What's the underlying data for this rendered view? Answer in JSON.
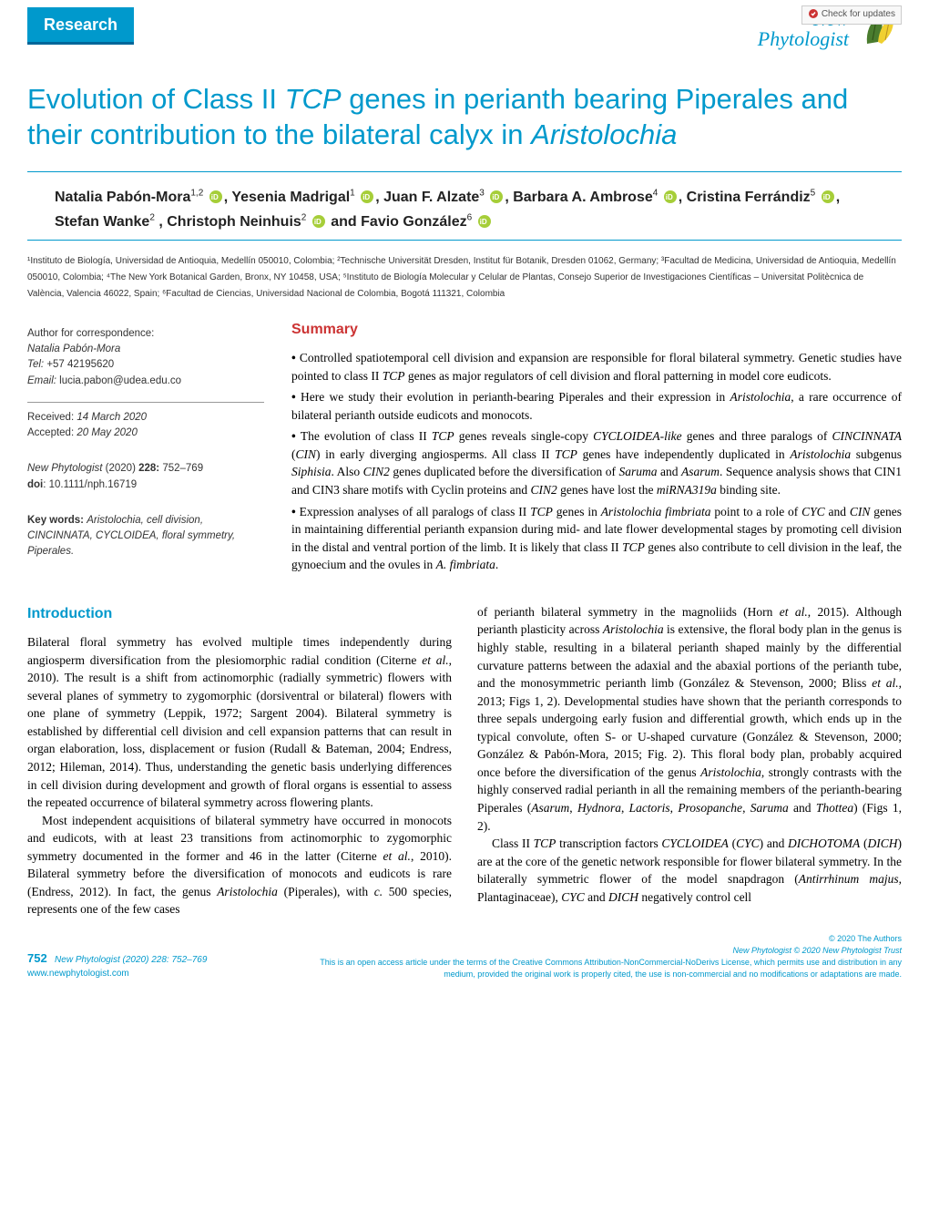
{
  "header": {
    "research_tab": "Research",
    "journal_line1": "New",
    "journal_line2": "Phytologist",
    "check_updates": "Check for updates"
  },
  "title": {
    "part1": "Evolution of Class II ",
    "italic1": "TCP",
    "part2": " genes in perianth bearing Piperales and their contribution to the bilateral calyx in ",
    "italic2": "Aristolochia"
  },
  "authors": [
    {
      "name": "Natalia Pabón-Mora",
      "sup": "1,2",
      "orcid": true,
      "sep": ", "
    },
    {
      "name": "Yesenia Madrigal",
      "sup": "1",
      "orcid": true,
      "sep": ", "
    },
    {
      "name": "Juan F. Alzate",
      "sup": "3",
      "orcid": true,
      "sep": ", "
    },
    {
      "name": "Barbara A. Ambrose",
      "sup": "4",
      "orcid": true,
      "sep": ", "
    },
    {
      "name": "Cristina Ferrándiz",
      "sup": "5",
      "orcid": true,
      "sep": ", "
    },
    {
      "name": "Stefan Wanke",
      "sup": "2",
      "orcid": false,
      "sep": ", "
    },
    {
      "name": "Christoph Neinhuis",
      "sup": "2",
      "orcid": true,
      "sep": " and "
    },
    {
      "name": "Favio González",
      "sup": "6",
      "orcid": true,
      "sep": ""
    }
  ],
  "affiliations": "¹Instituto de Biología, Universidad de Antioquia, Medellín 050010, Colombia; ²Technische Universität Dresden, Institut für Botanik, Dresden 01062, Germany; ³Facultad de Medicina, Universidad de Antioquia, Medellín 050010, Colombia; ⁴The New York Botanical Garden, Bronx, NY 10458, USA; ⁵Instituto de Biología Molecular y Celular de Plantas, Consejo Superior de Investigaciones Científicas – Universitat Politècnica de València, Valencia 46022, Spain; ⁶Facultad de Ciencias, Universidad Nacional de Colombia, Bogotá 111321, Colombia",
  "sidebar": {
    "corr_label": "Author for correspondence:",
    "corr_name": "Natalia Pabón-Mora",
    "corr_tel_label": "Tel: ",
    "corr_tel": "+57 42195620",
    "corr_email_label": "Email: ",
    "corr_email": "lucia.pabon@udea.edu.co",
    "received_label": "Received: ",
    "received": "14 March 2020",
    "accepted_label": "Accepted: ",
    "accepted": "20 May 2020",
    "citation_journal": "New Phytologist",
    "citation_year": " (2020) ",
    "citation_vol": "228: ",
    "citation_pages": "752–769",
    "doi_label": "doi",
    "doi": ": 10.1111/nph.16719",
    "keywords_label": "Key words: ",
    "keywords": "Aristolochia, cell division, CINCINNATA, CYCLOIDEA, floral symmetry, Piperales."
  },
  "summary": {
    "heading": "Summary",
    "items": [
      "Controlled spatiotemporal cell division and expansion are responsible for floral bilateral symmetry. Genetic studies have pointed to class II <i>TCP</i> genes as major regulators of cell division and floral patterning in model core eudicots.",
      "Here we study their evolution in perianth-bearing Piperales and their expression in <i>Aristolochia</i>, a rare occurrence of bilateral perianth outside eudicots and monocots.",
      "The evolution of class II <i>TCP</i> genes reveals single-copy <i>CYCLOIDEA-like</i> genes and three paralogs of <i>CINCINNATA</i> (<i>CIN</i>) in early diverging angiosperms. All class II <i>TCP</i> genes have independently duplicated in <i>Aristolochia</i> subgenus <i>Siphisia</i>. Also <i>CIN2</i> genes duplicated before the diversification of <i>Saruma</i> and <i>Asarum</i>. Sequence analysis shows that CIN1 and CIN3 share motifs with Cyclin proteins and <i>CIN2</i> genes have lost the <i>miRNA319a</i> binding site.",
      "Expression analyses of all paralogs of class II <i>TCP</i> genes in <i>Aristolochia fimbriata</i> point to a role of <i>CYC</i> and <i>CIN</i> genes in maintaining differential perianth expansion during mid- and late flower developmental stages by promoting cell division in the distal and ventral portion of the limb. It is likely that class II <i>TCP</i> genes also contribute to cell division in the leaf, the gynoecium and the ovules in <i>A. fimbriata</i>."
    ]
  },
  "intro": {
    "heading": "Introduction",
    "p1": "Bilateral floral symmetry has evolved multiple times independently during angiosperm diversification from the plesiomorphic radial condition (Citerne <i>et al.</i>, 2010). The result is a shift from actinomorphic (radially symmetric) flowers with several planes of symmetry to zygomorphic (dorsiventral or bilateral) flowers with one plane of symmetry (Leppik, 1972; Sargent 2004). Bilateral symmetry is established by differential cell division and cell expansion patterns that can result in organ elaboration, loss, displacement or fusion (Rudall & Bateman, 2004; Endress, 2012; Hileman, 2014). Thus, understanding the genetic basis underlying differences in cell division during development and growth of floral organs is essential to assess the repeated occurrence of bilateral symmetry across flowering plants.",
    "p2": "Most independent acquisitions of bilateral symmetry have occurred in monocots and eudicots, with at least 23 transitions from actinomorphic to zygomorphic symmetry documented in the former and 46 in the latter (Citerne <i>et al.</i>, 2010). Bilateral symmetry before the diversification of monocots and eudicots is rare (Endress, 2012). In fact, the genus <i>Aristolochia</i> (Piperales), with <i>c.</i> 500 species, represents one of the few cases",
    "p3": "of perianth bilateral symmetry in the magnoliids (Horn <i>et al.</i>, 2015). Although perianth plasticity across <i>Aristolochia</i> is extensive, the floral body plan in the genus is highly stable, resulting in a bilateral perianth shaped mainly by the differential curvature patterns between the adaxial and the abaxial portions of the perianth tube, and the monosymmetric perianth limb (González & Stevenson, 2000; Bliss <i>et al.</i>, 2013; Figs 1, 2). Developmental studies have shown that the perianth corresponds to three sepals undergoing early fusion and differential growth, which ends up in the typical convolute, often S- or U-shaped curvature (González & Stevenson, 2000; González & Pabón-Mora, 2015; Fig. 2). This floral body plan, probably acquired once before the diversification of the genus <i>Aristolochia</i>, strongly contrasts with the highly conserved radial perianth in all the remaining members of the perianth-bearing Piperales (<i>Asarum</i>, <i>Hydnora</i>, <i>Lactoris</i>, <i>Prosopanche</i>, <i>Saruma</i> and <i>Thottea</i>) (Figs 1, 2).",
    "p4": "Class II <i>TCP</i> transcription factors <i>CYCLOIDEA</i> (<i>CYC</i>) and <i>DICHOTOMA</i> (<i>DICH</i>) are at the core of the genetic network responsible for flower bilateral symmetry. In the bilaterally symmetric flower of the model snapdragon (<i>Antirrhinum majus</i>, Plantaginaceae), <i>CYC</i> and <i>DICH</i> negatively control cell"
  },
  "footer": {
    "page_num": "752",
    "citation": "New Phytologist (2020) 228: 752–769",
    "website": "www.newphytologist.com",
    "copyright1": "© 2020 The Authors",
    "copyright2": "New Phytologist © 2020 New Phytologist Trust",
    "license": "This is an open access article under the terms of the Creative Commons Attribution-NonCommercial-NoDerivs License, which permits use and distribution in any medium, provided the original work is properly cited, the use is non-commercial and no modifications or adaptations are made."
  },
  "colors": {
    "teal": "#0099cc",
    "red": "#cc3333",
    "orcid_green": "#a6ce39",
    "leaf_green": "#4a7c2e",
    "leaf_yellow": "#f0d030"
  }
}
